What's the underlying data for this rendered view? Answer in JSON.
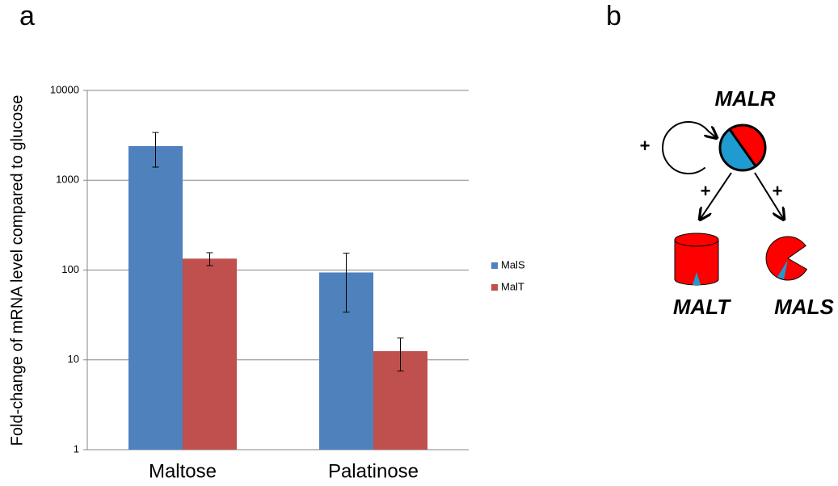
{
  "chart_data": {
    "type": "bar",
    "panel_label": "a",
    "y_label": "Fold-change of mRNA level compared to glucose",
    "categories": [
      "Maltose",
      "Palatinose"
    ],
    "series": [
      {
        "name": "MalS",
        "color": "#4f81bd",
        "values": [
          2400,
          94
        ],
        "errors": [
          1000,
          60
        ]
      },
      {
        "name": "MalT",
        "color": "#c0504d",
        "values": [
          134,
          12.5
        ],
        "errors": [
          22,
          5
        ]
      }
    ],
    "log_scale": true,
    "ylim": [
      1,
      10000
    ],
    "yticks": [
      1,
      10,
      100,
      1000,
      10000
    ],
    "grid": true,
    "legend": "right"
  },
  "diagram": {
    "panel_label": "b",
    "nodes": [
      {
        "label": "MALR"
      },
      {
        "label": "MALT"
      },
      {
        "label": "MALS"
      }
    ],
    "edges": [
      {
        "label": "+"
      },
      {
        "label": "+"
      },
      {
        "label": "+"
      }
    ]
  }
}
